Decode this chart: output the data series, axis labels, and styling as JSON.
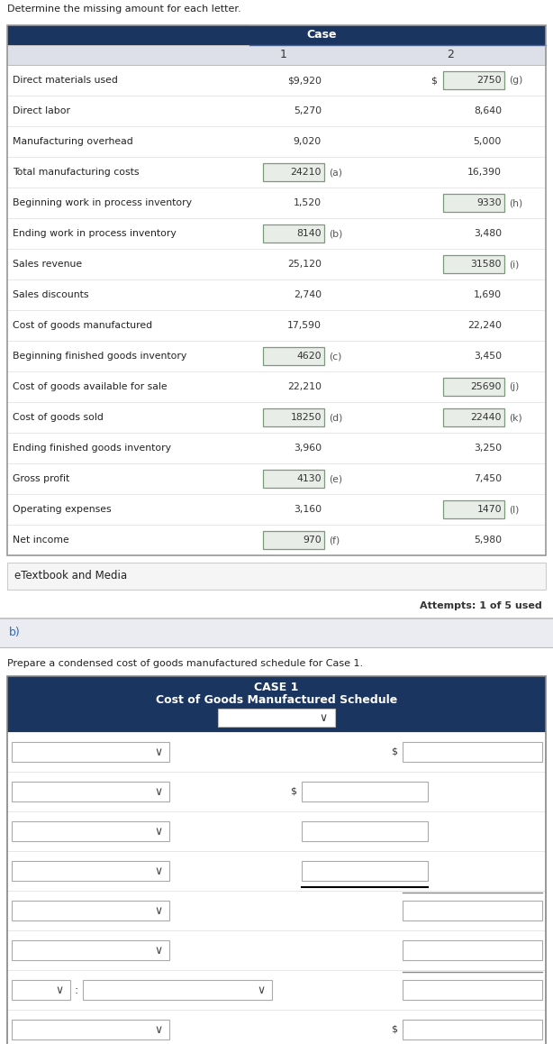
{
  "title": "Determine the missing amount for each letter.",
  "header_bg": "#1a3560",
  "subheader_bg": "#dde0e8",
  "case_header": "Case",
  "col1_header": "1",
  "col2_header": "2",
  "rows": [
    {
      "label": "Direct materials used",
      "val1": "$9,920",
      "val1_box": false,
      "val1_letter": "",
      "dollar1": false,
      "val2": "2750",
      "val2_box": true,
      "val2_letter": "(g)",
      "dollar2": true
    },
    {
      "label": "Direct labor",
      "val1": "5,270",
      "val1_box": false,
      "val1_letter": "",
      "dollar1": false,
      "val2": "8,640",
      "val2_box": false,
      "val2_letter": "",
      "dollar2": false
    },
    {
      "label": "Manufacturing overhead",
      "val1": "9,020",
      "val1_box": false,
      "val1_letter": "",
      "dollar1": false,
      "val2": "5,000",
      "val2_box": false,
      "val2_letter": "",
      "dollar2": false
    },
    {
      "label": "Total manufacturing costs",
      "val1": "24210",
      "val1_box": true,
      "val1_letter": "(a)",
      "dollar1": false,
      "val2": "16,390",
      "val2_box": false,
      "val2_letter": "",
      "dollar2": false
    },
    {
      "label": "Beginning work in process inventory",
      "val1": "1,520",
      "val1_box": false,
      "val1_letter": "",
      "dollar1": false,
      "val2": "9330",
      "val2_box": true,
      "val2_letter": "(h)",
      "dollar2": false
    },
    {
      "label": "Ending work in process inventory",
      "val1": "8140",
      "val1_box": true,
      "val1_letter": "(b)",
      "dollar1": false,
      "val2": "3,480",
      "val2_box": false,
      "val2_letter": "",
      "dollar2": false
    },
    {
      "label": "Sales revenue",
      "val1": "25,120",
      "val1_box": false,
      "val1_letter": "",
      "dollar1": false,
      "val2": "31580",
      "val2_box": true,
      "val2_letter": "(i)",
      "dollar2": false
    },
    {
      "label": "Sales discounts",
      "val1": "2,740",
      "val1_box": false,
      "val1_letter": "",
      "dollar1": false,
      "val2": "1,690",
      "val2_box": false,
      "val2_letter": "",
      "dollar2": false
    },
    {
      "label": "Cost of goods manufactured",
      "val1": "17,590",
      "val1_box": false,
      "val1_letter": "",
      "dollar1": false,
      "val2": "22,240",
      "val2_box": false,
      "val2_letter": "",
      "dollar2": false
    },
    {
      "label": "Beginning finished goods inventory",
      "val1": "4620",
      "val1_box": true,
      "val1_letter": "(c)",
      "dollar1": false,
      "val2": "3,450",
      "val2_box": false,
      "val2_letter": "",
      "dollar2": false
    },
    {
      "label": "Cost of goods available for sale",
      "val1": "22,210",
      "val1_box": false,
      "val1_letter": "",
      "dollar1": false,
      "val2": "25690",
      "val2_box": true,
      "val2_letter": "(j)",
      "dollar2": false
    },
    {
      "label": "Cost of goods sold",
      "val1": "18250",
      "val1_box": true,
      "val1_letter": "(d)",
      "dollar1": false,
      "val2": "22440",
      "val2_box": true,
      "val2_letter": "(k)",
      "dollar2": false
    },
    {
      "label": "Ending finished goods inventory",
      "val1": "3,960",
      "val1_box": false,
      "val1_letter": "",
      "dollar1": false,
      "val2": "3,250",
      "val2_box": false,
      "val2_letter": "",
      "dollar2": false
    },
    {
      "label": "Gross profit",
      "val1": "4130",
      "val1_box": true,
      "val1_letter": "(e)",
      "dollar1": false,
      "val2": "7,450",
      "val2_box": false,
      "val2_letter": "",
      "dollar2": false
    },
    {
      "label": "Operating expenses",
      "val1": "3,160",
      "val1_box": false,
      "val1_letter": "",
      "dollar1": false,
      "val2": "1470",
      "val2_box": true,
      "val2_letter": "(l)",
      "dollar2": false
    },
    {
      "label": "Net income",
      "val1": "970",
      "val1_box": true,
      "val1_letter": "(f)",
      "dollar1": false,
      "val2": "5,980",
      "val2_box": false,
      "val2_letter": "",
      "dollar2": false
    }
  ],
  "etextbook_label": "eTextbook and Media",
  "attempts_label": "Attempts: 1 of 5 used",
  "part_b_label": "b)",
  "part_b_instruction": "Prepare a condensed cost of goods manufactured schedule for Case 1.",
  "case1_title_line1": "CASE 1",
  "case1_title_line2": "Cost of Goods Manufactured Schedule",
  "box_border": "#7a9a7a",
  "box_fill": "#e8ede8"
}
